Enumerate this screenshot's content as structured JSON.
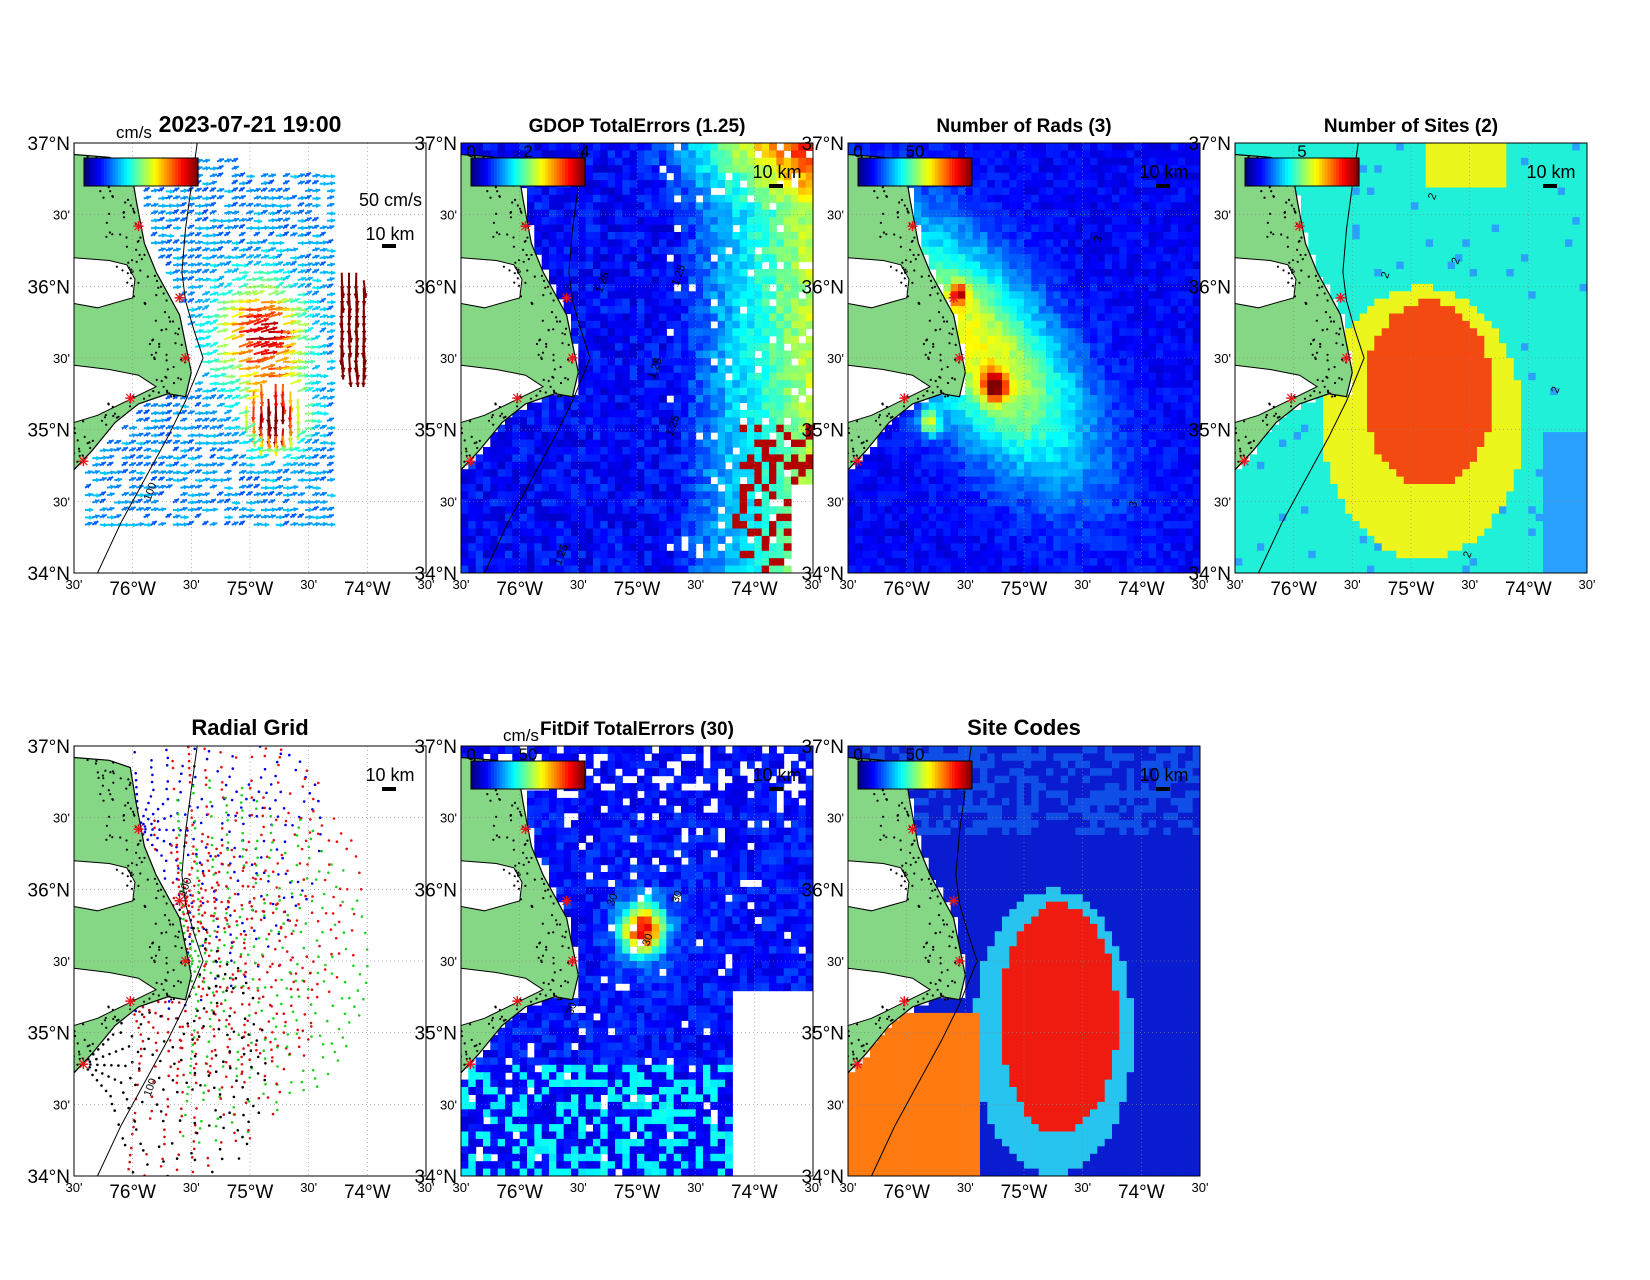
{
  "panels": [
    {
      "id": "total-currents",
      "kind": "vectors",
      "title": "2023-07-21 19:00",
      "colorbar": {
        "label": "cm/s",
        "ticks": []
      },
      "scale": {
        "vector_label": "50 cm/s",
        "distance_label": "10 km"
      },
      "contours": [
        {
          "label": "100",
          "lon": -75.85,
          "lat": 34.5
        }
      ]
    },
    {
      "id": "gdop-total-errors",
      "kind": "heatmap",
      "title": "GDOP TotalErrors (1.25)",
      "colorbar": {
        "label": "",
        "ticks": [
          "0",
          "2",
          "4"
        ]
      },
      "scale": {
        "distance_label": "10 km"
      },
      "contours": [
        {
          "label": "1.25",
          "lon": -75.3,
          "lat": 35.95
        },
        {
          "label": "1.25",
          "lon": -74.65,
          "lat": 36.0
        },
        {
          "label": "1.25",
          "lon": -74.85,
          "lat": 35.35
        },
        {
          "label": "1.25",
          "lon": -74.7,
          "lat": 34.95
        },
        {
          "label": "1.25",
          "lon": -75.65,
          "lat": 34.05
        }
      ]
    },
    {
      "id": "number-of-rads",
      "kind": "heatmap",
      "title": "Number of Rads (3)",
      "colorbar": {
        "label": "",
        "ticks": [
          "0",
          "50"
        ]
      },
      "scale": {
        "distance_label": "10 km"
      },
      "contours": [
        {
          "label": "3",
          "lon": -74.35,
          "lat": 36.3
        },
        {
          "label": "3",
          "lon": -74.05,
          "lat": 34.45
        }
      ]
    },
    {
      "id": "number-of-sites",
      "kind": "categorical",
      "title": "Number of Sites (2)",
      "colorbar": {
        "label": "",
        "ticks": [
          "5"
        ]
      },
      "scale": {
        "distance_label": "10 km"
      },
      "contours": [
        {
          "label": "2",
          "lon": -74.8,
          "lat": 36.6
        },
        {
          "label": "2",
          "lon": -74.6,
          "lat": 36.15
        },
        {
          "label": "2",
          "lon": -75.2,
          "lat": 36.05
        },
        {
          "label": "2",
          "lon": -73.75,
          "lat": 35.25
        },
        {
          "label": "2",
          "lon": -74.5,
          "lat": 34.1
        }
      ]
    },
    {
      "id": "radial-grid",
      "kind": "radial",
      "title": "Radial Grid",
      "colorbar": null,
      "scale": {
        "distance_label": "10 km"
      },
      "contours": [
        {
          "label": "100",
          "lon": -75.55,
          "lat": 35.95
        },
        {
          "label": "100",
          "lon": -75.85,
          "lat": 34.55
        }
      ]
    },
    {
      "id": "fitdif-total-errors",
      "kind": "heatmap",
      "title": "FitDif TotalErrors (30)",
      "colorbar": {
        "label": "cm/s",
        "ticks": [
          "0",
          "50"
        ]
      },
      "scale": {
        "distance_label": "10 km"
      },
      "contours": [
        {
          "label": "30",
          "lon": -75.2,
          "lat": 35.88
        },
        {
          "label": "30",
          "lon": -74.9,
          "lat": 35.6
        },
        {
          "label": "30",
          "lon": -74.65,
          "lat": 35.9
        },
        {
          "label": "30",
          "lon": -75.55,
          "lat": 35.12
        }
      ]
    },
    {
      "id": "site-codes",
      "kind": "categorical",
      "title": "Site Codes",
      "colorbar": {
        "label": "",
        "ticks": [
          "0",
          "50"
        ]
      },
      "scale": {
        "distance_label": "10 km"
      },
      "contours": []
    }
  ],
  "axes": {
    "lat_ticks": [
      {
        "lat": 37.0,
        "label": "37°N"
      },
      {
        "lat": 36.5,
        "label": "30'"
      },
      {
        "lat": 36.0,
        "label": "36°N"
      },
      {
        "lat": 35.5,
        "label": "30'"
      },
      {
        "lat": 35.0,
        "label": "35°N"
      },
      {
        "lat": 34.5,
        "label": "30'"
      },
      {
        "lat": 34.0,
        "label": "34°N"
      }
    ],
    "lon_ticks": [
      {
        "lon": -76.5,
        "label": "30'"
      },
      {
        "lon": -76.0,
        "label": "76°W"
      },
      {
        "lon": -75.5,
        "label": "30'"
      },
      {
        "lon": -75.0,
        "label": "75°W"
      },
      {
        "lon": -74.5,
        "label": "30'"
      },
      {
        "lon": -74.0,
        "label": "74°W"
      },
      {
        "lon": -73.5,
        "label": "30'"
      }
    ],
    "lon_range": [
      -76.5,
      -73.5
    ],
    "lat_range": [
      34.0,
      37.0
    ]
  },
  "radar_sites": [
    {
      "lon": -75.95,
      "lat": 36.42
    },
    {
      "lon": -75.6,
      "lat": 35.92
    },
    {
      "lon": -75.55,
      "lat": 35.5
    },
    {
      "lon": -76.02,
      "lat": 35.22
    },
    {
      "lon": -76.42,
      "lat": 34.78
    },
    {
      "lon": -76.45,
      "lat": 34.72
    }
  ],
  "colors": {
    "land": "#85d685",
    "site_marker": "#e8141c",
    "radial_site_colors": [
      "#0000e0",
      "#e81010",
      "#20d020",
      "#d01010",
      "#000000"
    ],
    "categorical_sites": [
      "#2aa0ff",
      "#20f0d8",
      "#ecf51c",
      "#f24a10",
      "#8a0000"
    ],
    "categorical_codes": [
      "#0a1ccf",
      "#0f4fe8",
      "#27c4f0",
      "#ff7a10",
      "#ef1a10",
      "#8a0000"
    ]
  }
}
